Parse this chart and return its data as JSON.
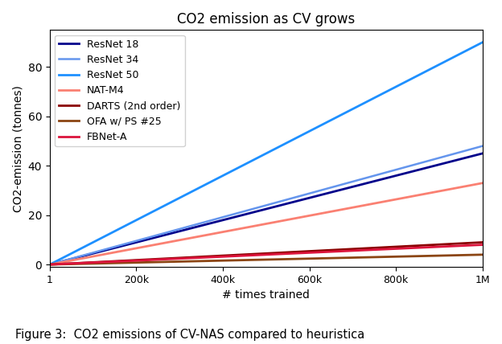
{
  "title": "CO2 emission as CV grows",
  "xlabel": "# times trained",
  "ylabel": "CO2-emission (tonnes)",
  "caption": "Figure 3:  CO2 emissions of CV-NAS compared to heuristica",
  "xmin": 1,
  "xmax": 1000000,
  "ymin": -1.0,
  "ymax": 95,
  "xticks": [
    1,
    200000,
    400000,
    600000,
    800000,
    1000000
  ],
  "xticklabels": [
    "1",
    "200k",
    "400k",
    "600k",
    "800k",
    "1M"
  ],
  "series": [
    {
      "label": "ResNet 18",
      "color": "#00008B",
      "linewidth": 2.0,
      "search_cost": 0.0,
      "train_cost": 4.5e-05
    },
    {
      "label": "ResNet 34",
      "color": "#6495ED",
      "linewidth": 1.8,
      "search_cost": 0.0,
      "train_cost": 4.8e-05
    },
    {
      "label": "ResNet 50",
      "color": "#1E90FF",
      "linewidth": 2.0,
      "search_cost": 0.0,
      "train_cost": 9e-05
    },
    {
      "label": "NAT-M4",
      "color": "#FA8072",
      "linewidth": 2.0,
      "search_cost": 0.0,
      "train_cost": 3.3e-05
    },
    {
      "label": "DARTS (2nd order)",
      "color": "#8B0000",
      "linewidth": 2.0,
      "search_cost": 0.0,
      "train_cost": 9e-06
    },
    {
      "label": "OFA w/ PS #25",
      "color": "#8B4513",
      "linewidth": 2.0,
      "search_cost": 0.0,
      "train_cost": 4e-06
    },
    {
      "label": "FBNet-A",
      "color": "#DC143C",
      "linewidth": 2.0,
      "search_cost": 0.0,
      "train_cost": 8e-06
    }
  ],
  "figsize": [
    6.24,
    4.28
  ],
  "dpi": 100,
  "legend_fontsize": 9,
  "axis_fontsize": 10,
  "title_fontsize": 12,
  "tick_fontsize": 9
}
